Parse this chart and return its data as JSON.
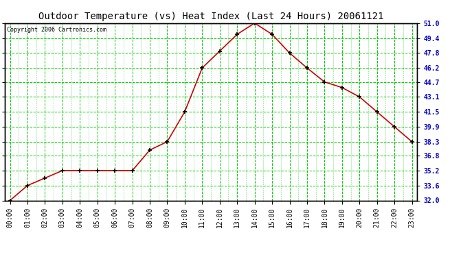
{
  "title": "Outdoor Temperature (vs) Heat Index (Last 24 Hours) 20061121",
  "copyright": "Copyright 2006 Cartronics.com",
  "x_labels": [
    "00:00",
    "01:00",
    "02:00",
    "03:00",
    "04:00",
    "05:00",
    "06:00",
    "07:00",
    "08:00",
    "09:00",
    "10:00",
    "11:00",
    "12:00",
    "13:00",
    "14:00",
    "15:00",
    "16:00",
    "17:00",
    "18:00",
    "19:00",
    "20:00",
    "21:00",
    "22:00",
    "23:00"
  ],
  "y_values": [
    32.0,
    33.6,
    34.4,
    35.2,
    35.2,
    35.2,
    35.2,
    35.2,
    37.4,
    38.3,
    41.5,
    46.2,
    48.0,
    49.8,
    51.0,
    49.8,
    47.8,
    46.2,
    44.7,
    44.1,
    43.1,
    41.5,
    39.9,
    38.3
  ],
  "y_min": 32.0,
  "y_max": 51.0,
  "y_ticks": [
    32.0,
    33.6,
    35.2,
    36.8,
    38.3,
    39.9,
    41.5,
    43.1,
    44.7,
    46.2,
    47.8,
    49.4,
    51.0
  ],
  "line_color": "#cc0000",
  "marker_color": "#000000",
  "bg_color": "#ffffff",
  "plot_bg_color": "#ffffff",
  "grid_color": "#00cc00",
  "title_color": "#000000",
  "right_axis_color": "#0000cc",
  "border_color": "#000000",
  "title_fontsize": 10,
  "tick_fontsize": 7,
  "copyright_fontsize": 6
}
